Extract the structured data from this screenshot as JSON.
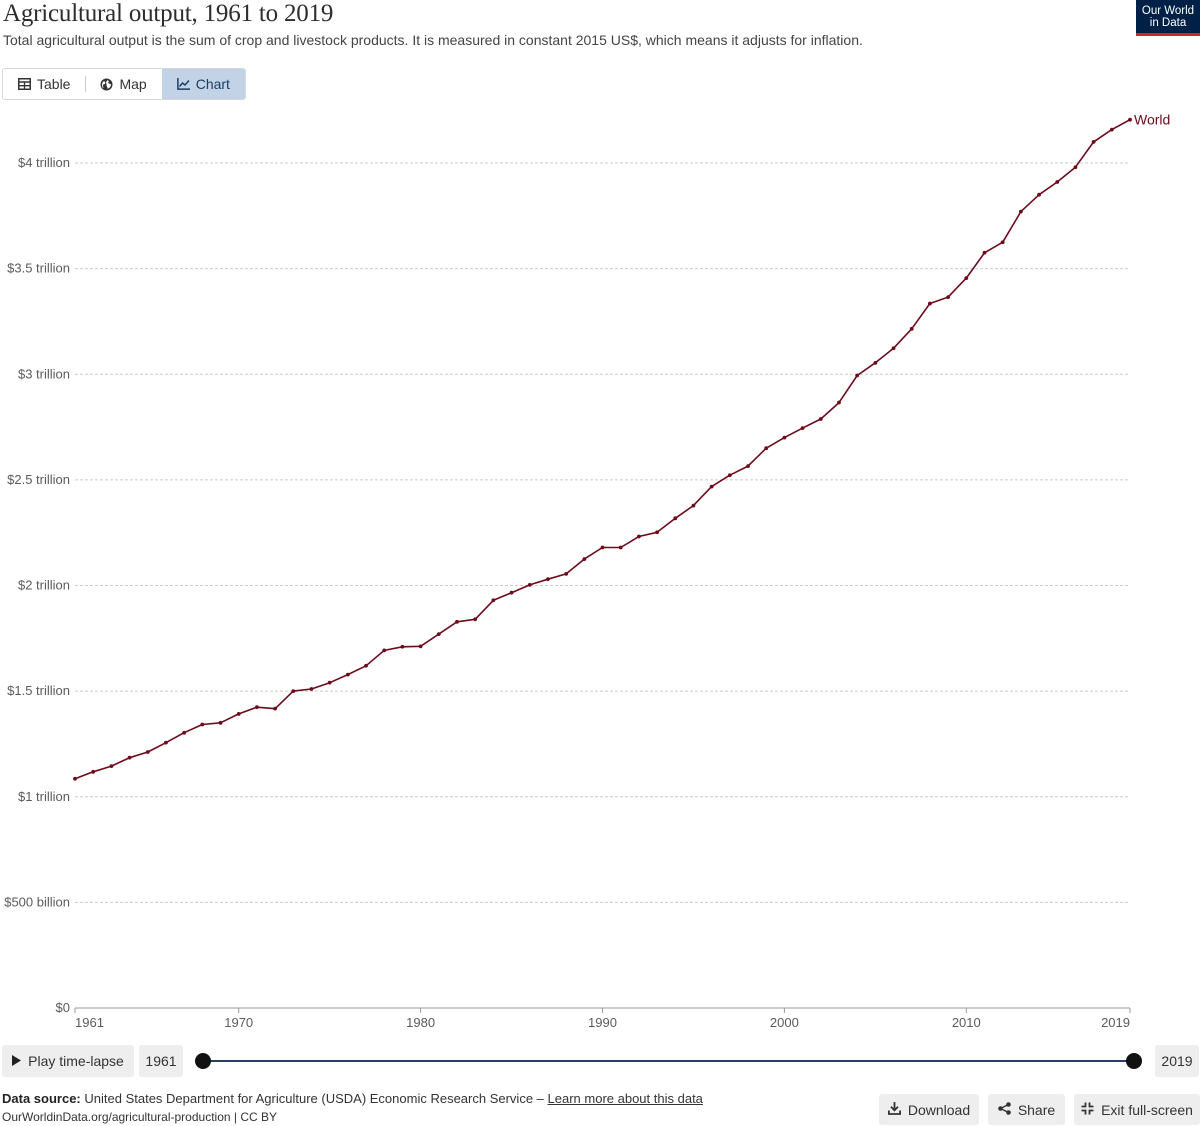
{
  "header": {
    "title": "Agricultural output, 1961 to 2019",
    "subtitle": "Total agricultural output is the sum of crop and livestock products. It is measured in constant 2015 US$, which means it adjusts for inflation.",
    "logo_line1": "Our World",
    "logo_line2": "in Data"
  },
  "tabs": [
    {
      "label": "Table",
      "icon": "table-icon"
    },
    {
      "label": "Map",
      "icon": "globe-icon"
    },
    {
      "label": "Chart",
      "icon": "line-chart-icon",
      "active": true
    }
  ],
  "colors": {
    "series": "#6d0b1b",
    "grid": "#cccccc",
    "accent": "#002147",
    "active_tab": "#c2d3e8"
  },
  "chart_data": {
    "type": "line",
    "title": "Agricultural output, 1961 to 2019",
    "xlabel": "",
    "ylabel": "",
    "xlim": [
      1961,
      2019
    ],
    "ylim": [
      0,
      4000000000000
    ],
    "y_ticks": [
      {
        "value": 0,
        "label": "$0"
      },
      {
        "value": 500000000000,
        "label": "$500 billion"
      },
      {
        "value": 1000000000000,
        "label": "$1 trillion"
      },
      {
        "value": 1500000000000,
        "label": "$1.5 trillion"
      },
      {
        "value": 2000000000000,
        "label": "$2 trillion"
      },
      {
        "value": 2500000000000,
        "label": "$2.5 trillion"
      },
      {
        "value": 3000000000000,
        "label": "$3 trillion"
      },
      {
        "value": 3500000000000,
        "label": "$3.5 trillion"
      },
      {
        "value": 4000000000000,
        "label": "$4 trillion"
      }
    ],
    "x_ticks": [
      {
        "value": 1961,
        "label": "1961"
      },
      {
        "value": 1970,
        "label": "1970"
      },
      {
        "value": 1980,
        "label": "1980"
      },
      {
        "value": 1990,
        "label": "1990"
      },
      {
        "value": 2000,
        "label": "2000"
      },
      {
        "value": 2010,
        "label": "2010"
      },
      {
        "value": 2019,
        "label": "2019"
      }
    ],
    "grid": true,
    "legend": "inline-end-label",
    "series": [
      {
        "name": "World",
        "x": [
          1961,
          1962,
          1963,
          1964,
          1965,
          1966,
          1967,
          1968,
          1969,
          1970,
          1971,
          1972,
          1973,
          1974,
          1975,
          1976,
          1977,
          1978,
          1979,
          1980,
          1981,
          1982,
          1983,
          1984,
          1985,
          1986,
          1987,
          1988,
          1989,
          1990,
          1991,
          1992,
          1993,
          1994,
          1995,
          1996,
          1997,
          1998,
          1999,
          2000,
          2001,
          2002,
          2003,
          2004,
          2005,
          2006,
          2007,
          2008,
          2009,
          2010,
          2011,
          2012,
          2013,
          2014,
          2015,
          2016,
          2017,
          2018,
          2019
        ],
        "values": [
          1085000000000,
          1118000000000,
          1145000000000,
          1185000000000,
          1212000000000,
          1256000000000,
          1303000000000,
          1342000000000,
          1350000000000,
          1392000000000,
          1424000000000,
          1417000000000,
          1500000000000,
          1510000000000,
          1540000000000,
          1578000000000,
          1620000000000,
          1693000000000,
          1710000000000,
          1712000000000,
          1770000000000,
          1828000000000,
          1840000000000,
          1930000000000,
          1966000000000,
          2003000000000,
          2030000000000,
          2055000000000,
          2125000000000,
          2180000000000,
          2180000000000,
          2232000000000,
          2252000000000,
          2318000000000,
          2378000000000,
          2468000000000,
          2522000000000,
          2565000000000,
          2650000000000,
          2700000000000,
          2745000000000,
          2788000000000,
          2866000000000,
          2994000000000,
          3054000000000,
          3123000000000,
          3215000000000,
          3335000000000,
          3365000000000,
          3455000000000,
          3575000000000,
          3625000000000,
          3770000000000,
          3850000000000,
          3910000000000,
          3980000000000,
          4100000000000,
          4158000000000,
          4205000000000
        ]
      }
    ]
  },
  "timeline": {
    "play_label": "Play time-lapse",
    "start_year": "1961",
    "end_year": "2019"
  },
  "footer": {
    "source_label": "Data source:",
    "source_text": "United States Department for Agriculture (USDA) Economic Research Service –",
    "learn_more": "Learn more about this data",
    "url_line": "OurWorldinData.org/agricultural-production | CC BY"
  },
  "actions": {
    "download": "Download",
    "share": "Share",
    "exit_fullscreen": "Exit full-screen"
  }
}
